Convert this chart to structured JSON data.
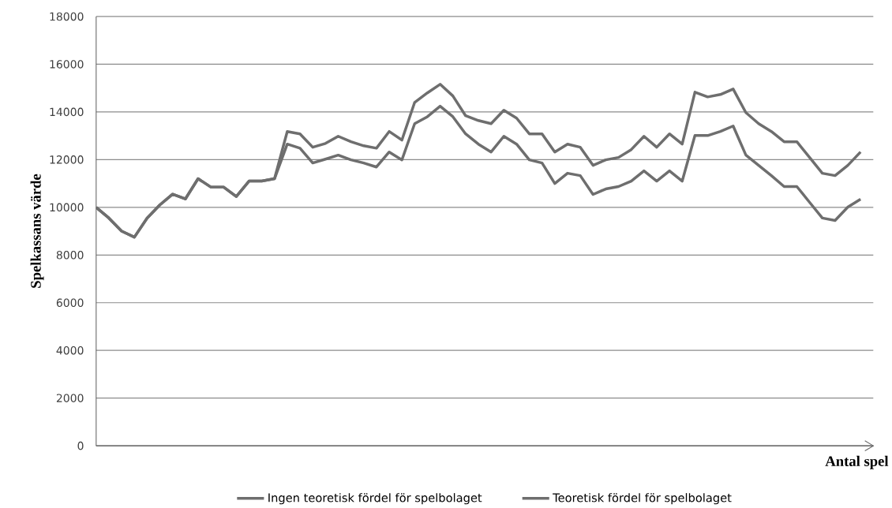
{
  "chart_data": {
    "type": "line",
    "xlabel": "Antal spel",
    "ylabel": "Spelkassans värde",
    "categories": [
      null,
      null,
      null,
      null,
      null,
      null,
      null,
      null,
      null,
      null,
      null,
      null,
      null,
      null,
      null,
      null,
      null,
      null,
      null,
      null,
      null,
      null,
      null,
      null,
      null,
      null,
      null,
      null,
      null,
      null,
      null,
      null,
      null,
      null,
      null,
      null,
      null,
      null,
      null,
      null,
      null,
      null,
      null,
      null,
      null,
      null,
      null,
      null,
      null,
      null,
      null,
      null,
      null,
      null,
      null,
      null,
      null,
      null,
      null,
      null,
      null
    ],
    "series": [
      {
        "name": "Ingen teoretisk fördel för spelbolaget",
        "color": "#6e6e6e",
        "values": [
          10000,
          9550,
          9000,
          8750,
          9550,
          10100,
          10550,
          10350,
          11200,
          10850,
          10850,
          10450,
          11100,
          11100,
          11200,
          13180,
          13080,
          12520,
          12680,
          12980,
          12750,
          12580,
          12480,
          13180,
          12820,
          14400,
          14800,
          15160,
          14670,
          13840,
          13640,
          13510,
          14070,
          13740,
          13080,
          13080,
          12320,
          12650,
          12520,
          11760,
          11990,
          12090,
          12420,
          12980,
          12520,
          13080,
          12650,
          14830,
          14630,
          14730,
          14960,
          13970,
          13510,
          13180,
          12750,
          12750,
          12090,
          11430,
          11330,
          11760,
          12320
        ]
      },
      {
        "name": "Teoretisk fördel för spelbolaget",
        "color": "#6e6e6e",
        "values": [
          10000,
          9550,
          9000,
          8750,
          9550,
          10100,
          10550,
          10350,
          11200,
          10850,
          10850,
          10450,
          11100,
          11100,
          11200,
          12650,
          12480,
          11860,
          12020,
          12190,
          11990,
          11860,
          11690,
          12320,
          11990,
          13510,
          13800,
          14240,
          13800,
          13080,
          12650,
          12320,
          12980,
          12650,
          11990,
          11860,
          11000,
          11430,
          11330,
          10540,
          10770,
          10870,
          11100,
          11530,
          11100,
          11530,
          11100,
          13010,
          13010,
          13180,
          13410,
          12190,
          11760,
          11330,
          10870,
          10870,
          10210,
          9550,
          9450,
          10010,
          10340
        ]
      }
    ],
    "ylim": [
      0,
      18000
    ],
    "yticks": [
      0,
      2000,
      4000,
      6000,
      8000,
      10000,
      12000,
      14000,
      16000,
      18000
    ],
    "grid": "y",
    "legend": "bottom",
    "marker": "none",
    "line_style": "solid"
  }
}
